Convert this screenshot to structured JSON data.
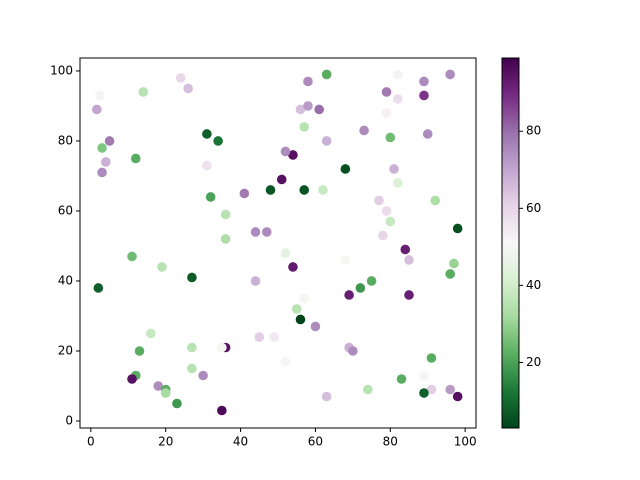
{
  "chart_data": {
    "type": "scatter",
    "x": [
      2.4,
      1.6,
      24,
      26,
      14,
      58,
      63,
      82,
      89,
      96,
      79,
      82,
      89,
      56,
      58,
      61,
      79,
      73,
      57,
      5,
      3,
      4,
      3,
      12,
      31,
      34,
      31,
      63,
      80,
      90,
      54,
      52,
      68,
      81,
      82,
      51,
      48,
      57,
      62,
      41,
      32,
      77,
      79,
      92,
      36,
      80,
      98,
      44,
      47,
      78,
      36,
      84,
      52,
      11,
      68,
      85,
      97,
      19,
      54,
      96,
      27,
      75,
      44,
      2,
      72,
      69,
      85,
      57,
      55,
      56,
      60,
      16,
      45,
      49,
      27,
      36,
      35,
      69,
      70,
      13,
      52,
      91,
      27,
      30,
      12,
      11,
      83,
      89,
      18,
      20,
      20,
      74,
      91,
      96,
      89,
      98,
      63,
      23,
      35
    ],
    "y": [
      93,
      89,
      98,
      95,
      94,
      97,
      99,
      99,
      97,
      99,
      94,
      92,
      93,
      89,
      90,
      89,
      88,
      83,
      84,
      80,
      78,
      74,
      71,
      75,
      82,
      80,
      73,
      80,
      81,
      82,
      76,
      77,
      72,
      72,
      68,
      69,
      66,
      66,
      66,
      65,
      64,
      63,
      60,
      63,
      59,
      57,
      55,
      54,
      54,
      53,
      52,
      49,
      48,
      47,
      46,
      46,
      45,
      44,
      44,
      42,
      41,
      40,
      40,
      38,
      38,
      36,
      36,
      35,
      32,
      29,
      27,
      25,
      24,
      24,
      21,
      21,
      21,
      21,
      20,
      20,
      17,
      18,
      15,
      13,
      13,
      12,
      12,
      13,
      10,
      9,
      8,
      9,
      9,
      9,
      8,
      7,
      7,
      5,
      3
    ],
    "color_values": [
      52,
      70,
      60,
      65,
      35,
      75,
      22,
      52,
      75,
      75,
      78,
      58,
      88,
      65,
      72,
      80,
      53,
      75,
      35,
      78,
      27,
      68,
      75,
      22,
      8,
      12,
      57,
      68,
      25,
      75,
      95,
      75,
      5,
      68,
      42,
      95,
      6,
      6,
      38,
      78,
      20,
      62,
      58,
      33,
      35,
      38,
      5,
      75,
      75,
      60,
      33,
      92,
      45,
      25,
      50,
      65,
      30,
      35,
      93,
      22,
      7,
      22,
      68,
      8,
      18,
      92,
      92,
      50,
      35,
      3,
      75,
      38,
      62,
      55,
      35,
      95,
      50,
      68,
      75,
      22,
      50,
      22,
      35,
      75,
      22,
      95,
      22,
      52,
      75,
      22,
      32,
      35,
      62,
      72,
      8,
      95,
      65,
      18,
      97
    ],
    "colormap": "PRGn",
    "clim": [
      3,
      99
    ],
    "cticks": [
      20,
      40,
      60,
      80
    ],
    "xlim": [
      -2.9,
      102.9
    ],
    "xticks": [
      0,
      20,
      40,
      60,
      80,
      100
    ],
    "ylim": [
      -2,
      103.7
    ],
    "yticks": [
      0,
      20,
      40,
      60,
      80,
      100
    ],
    "grid": false
  }
}
